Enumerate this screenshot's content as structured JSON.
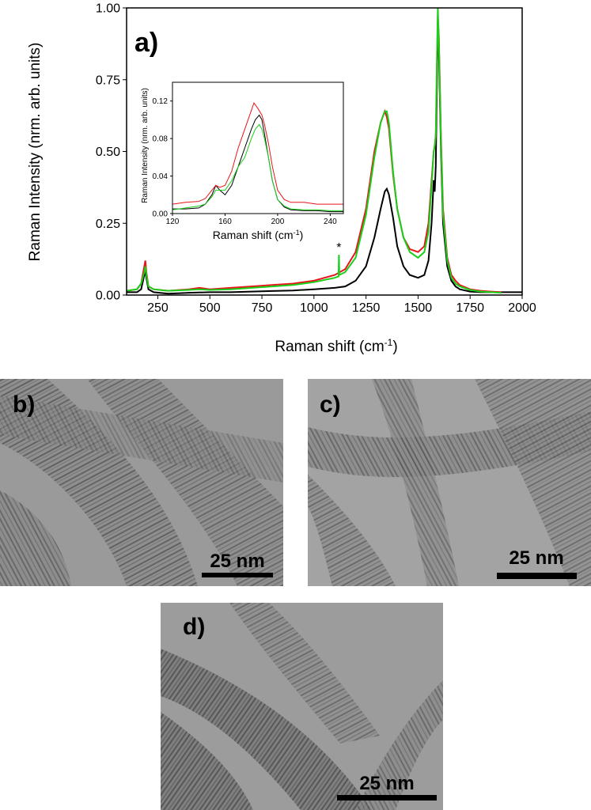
{
  "chart_data": {
    "type": "line",
    "panel_label": "a)",
    "xlabel": "Raman shift (cm",
    "xlabel_sup": "-1",
    "xlabel_end": ")",
    "ylabel": "Raman Intensity (nrm. arb. units)",
    "xlim": [
      100,
      2000
    ],
    "ylim": [
      0,
      1.0
    ],
    "x_ticks": [
      250,
      500,
      750,
      1000,
      1250,
      1500,
      1750,
      2000
    ],
    "y_ticks": [
      "0.00",
      "0.25",
      "0.50",
      "0.75",
      "1.00"
    ],
    "y_tick_values": [
      0,
      0.25,
      0.5,
      0.75,
      1.0
    ],
    "annotation": "*",
    "annotation_x": 1120,
    "series": [
      {
        "color": "#000000",
        "x": [
          100,
          150,
          170,
          185,
          190,
          195,
          205,
          230,
          300,
          400,
          500,
          600,
          700,
          800,
          900,
          1000,
          1100,
          1150,
          1200,
          1250,
          1290,
          1320,
          1340,
          1350,
          1360,
          1380,
          1400,
          1430,
          1460,
          1500,
          1530,
          1550,
          1565,
          1575,
          1580,
          1585,
          1590,
          1595,
          1600,
          1610,
          1620,
          1640,
          1660,
          1680,
          1700,
          1750,
          1800,
          1900,
          2000
        ],
        "y": [
          0.01,
          0.01,
          0.02,
          0.07,
          0.08,
          0.06,
          0.02,
          0.01,
          0.005,
          0.008,
          0.01,
          0.01,
          0.012,
          0.014,
          0.016,
          0.02,
          0.025,
          0.03,
          0.05,
          0.1,
          0.2,
          0.3,
          0.36,
          0.37,
          0.35,
          0.27,
          0.17,
          0.1,
          0.07,
          0.06,
          0.07,
          0.12,
          0.25,
          0.4,
          0.36,
          0.45,
          0.7,
          0.95,
          0.85,
          0.5,
          0.25,
          0.1,
          0.05,
          0.03,
          0.02,
          0.012,
          0.01,
          0.01,
          0.01
        ]
      },
      {
        "color": "#e8151b",
        "x": [
          100,
          150,
          170,
          185,
          190,
          195,
          205,
          230,
          300,
          400,
          450,
          500,
          600,
          700,
          800,
          900,
          1000,
          1100,
          1150,
          1200,
          1250,
          1290,
          1320,
          1340,
          1350,
          1360,
          1380,
          1400,
          1430,
          1460,
          1500,
          1530,
          1550,
          1565,
          1575,
          1580,
          1585,
          1590,
          1595,
          1600,
          1610,
          1620,
          1640,
          1660,
          1680,
          1700,
          1750,
          1800,
          1850,
          1900
        ],
        "y": [
          0.015,
          0.02,
          0.04,
          0.1,
          0.12,
          0.08,
          0.03,
          0.02,
          0.015,
          0.02,
          0.025,
          0.02,
          0.025,
          0.03,
          0.035,
          0.04,
          0.05,
          0.07,
          0.09,
          0.15,
          0.3,
          0.5,
          0.6,
          0.64,
          0.62,
          0.58,
          0.42,
          0.3,
          0.2,
          0.16,
          0.15,
          0.17,
          0.25,
          0.4,
          0.5,
          0.52,
          0.55,
          0.75,
          0.97,
          0.9,
          0.55,
          0.3,
          0.13,
          0.07,
          0.05,
          0.035,
          0.02,
          0.015,
          0.012,
          0.01
        ]
      },
      {
        "color": "#19cf19",
        "x": [
          100,
          150,
          170,
          185,
          190,
          195,
          205,
          230,
          300,
          400,
          450,
          500,
          600,
          700,
          800,
          900,
          1000,
          1100,
          1118,
          1120,
          1122,
          1150,
          1200,
          1250,
          1290,
          1320,
          1340,
          1350,
          1360,
          1380,
          1400,
          1430,
          1460,
          1500,
          1530,
          1550,
          1565,
          1575,
          1580,
          1585,
          1590,
          1595,
          1600,
          1610,
          1620,
          1640,
          1660,
          1680,
          1700,
          1750,
          1800,
          1850,
          1900
        ],
        "y": [
          0.015,
          0.02,
          0.04,
          0.08,
          0.1,
          0.07,
          0.03,
          0.02,
          0.015,
          0.018,
          0.02,
          0.018,
          0.02,
          0.025,
          0.03,
          0.035,
          0.045,
          0.06,
          0.065,
          0.14,
          0.07,
          0.08,
          0.13,
          0.28,
          0.48,
          0.6,
          0.64,
          0.64,
          0.6,
          0.43,
          0.3,
          0.2,
          0.15,
          0.13,
          0.15,
          0.22,
          0.38,
          0.5,
          0.52,
          0.56,
          0.8,
          1.0,
          0.88,
          0.53,
          0.28,
          0.12,
          0.06,
          0.04,
          0.03,
          0.018,
          0.012,
          0.01,
          0.008
        ]
      }
    ],
    "inset": {
      "xlabel": "Raman shift (cm",
      "xlabel_sup": "-1",
      "xlabel_end": ")",
      "ylabel": "Raman Intensity (nrm. arb. units)",
      "xlim": [
        120,
        250
      ],
      "ylim": [
        0,
        0.14
      ],
      "x_ticks": [
        120,
        160,
        200,
        240
      ],
      "y_ticks": [
        "0.00",
        "0.04",
        "0.08",
        "0.12"
      ],
      "y_tick_values": [
        0,
        0.04,
        0.08,
        0.12
      ],
      "series": [
        {
          "color": "#000000",
          "x": [
            120,
            130,
            140,
            145,
            150,
            153,
            156,
            160,
            165,
            170,
            175,
            180,
            183,
            186,
            188,
            190,
            193,
            196,
            200,
            205,
            210,
            220,
            230,
            240,
            250
          ],
          "y": [
            0.005,
            0.005,
            0.006,
            0.01,
            0.02,
            0.03,
            0.025,
            0.02,
            0.03,
            0.05,
            0.07,
            0.09,
            0.1,
            0.105,
            0.1,
            0.085,
            0.06,
            0.035,
            0.015,
            0.007,
            0.004,
            0.003,
            0.003,
            0.002,
            0.002
          ]
        },
        {
          "color": "#e8151b",
          "x": [
            120,
            130,
            140,
            145,
            150,
            153,
            156,
            160,
            165,
            170,
            175,
            180,
            182,
            185,
            188,
            190,
            193,
            196,
            200,
            205,
            210,
            220,
            230,
            240,
            250
          ],
          "y": [
            0.01,
            0.012,
            0.013,
            0.016,
            0.025,
            0.03,
            0.028,
            0.03,
            0.045,
            0.07,
            0.09,
            0.11,
            0.118,
            0.112,
            0.105,
            0.095,
            0.075,
            0.05,
            0.025,
            0.015,
            0.012,
            0.012,
            0.01,
            0.01,
            0.01
          ]
        },
        {
          "color": "#19cf19",
          "x": [
            120,
            130,
            140,
            145,
            150,
            153,
            156,
            160,
            165,
            170,
            175,
            180,
            183,
            186,
            188,
            190,
            193,
            196,
            200,
            205,
            210,
            220,
            230,
            240,
            250
          ],
          "y": [
            0.004,
            0.006,
            0.008,
            0.01,
            0.018,
            0.025,
            0.025,
            0.025,
            0.035,
            0.05,
            0.06,
            0.08,
            0.09,
            0.095,
            0.09,
            0.08,
            0.06,
            0.035,
            0.015,
            0.008,
            0.005,
            0.004,
            0.004,
            0.003,
            0.003
          ]
        }
      ]
    }
  },
  "micrographs": [
    {
      "label": "b)",
      "scale": "25 nm"
    },
    {
      "label": "c)",
      "scale": "25 nm"
    },
    {
      "label": "d)",
      "scale": "25 nm"
    }
  ]
}
